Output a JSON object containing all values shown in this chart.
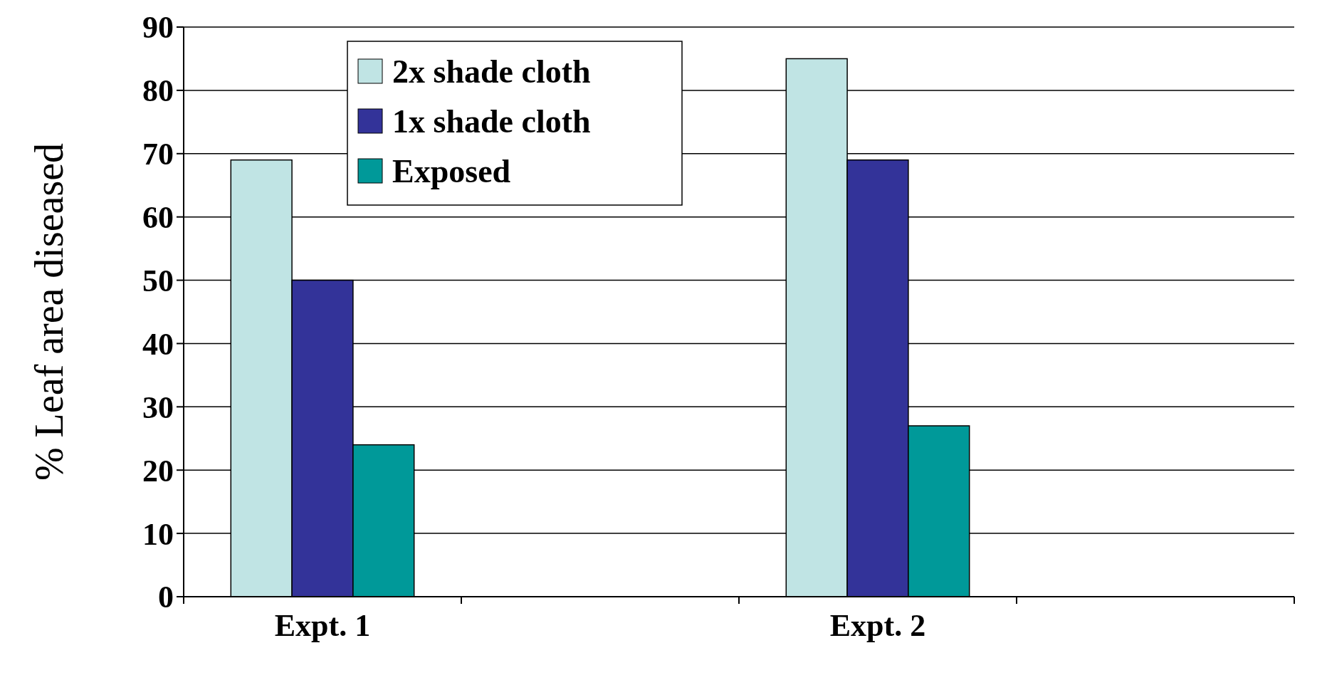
{
  "chart_data": {
    "type": "bar",
    "ylabel": "% Leaf area diseased",
    "categories": [
      "Expt. 1",
      null,
      "Expt. 2",
      null
    ],
    "series": [
      {
        "name": "2x shade cloth",
        "color": "#c0e4e4",
        "values": [
          69,
          null,
          85,
          null
        ]
      },
      {
        "name": "1x shade cloth",
        "color": "#333399",
        "values": [
          50,
          null,
          69,
          null
        ]
      },
      {
        "name": "Exposed",
        "color": "#009999",
        "values": [
          24,
          null,
          27,
          null
        ]
      }
    ],
    "ylim": [
      0,
      90
    ],
    "yticks": [
      0,
      10,
      20,
      30,
      40,
      50,
      60,
      70,
      80,
      90
    ],
    "grid": "y",
    "legend": "top left"
  }
}
